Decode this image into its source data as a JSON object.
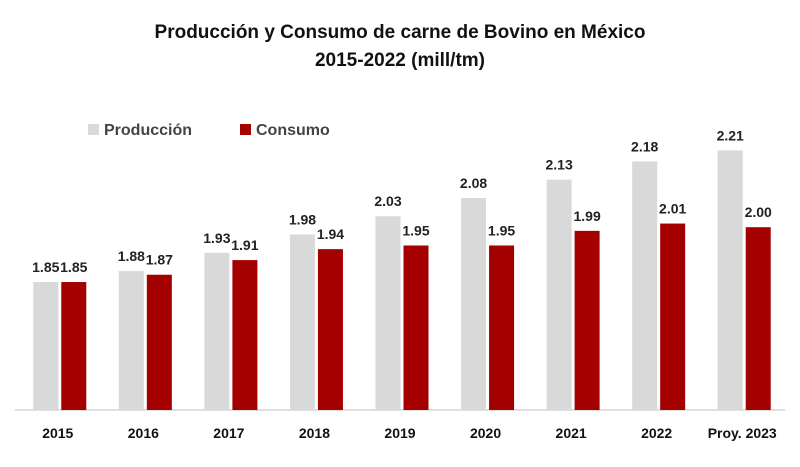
{
  "chart_data": {
    "type": "bar",
    "title": "Producción y Consumo de carne de Bovino en México",
    "subtitle": "2015-2022  (mill/tm)",
    "categories": [
      "2015",
      "2016",
      "2017",
      "2018",
      "2019",
      "2020",
      "2021",
      "2022",
      "Proy. 2023"
    ],
    "series": [
      {
        "name": "Producción",
        "color": "#d9d9d9",
        "values": [
          1.85,
          1.88,
          1.93,
          1.98,
          2.03,
          2.08,
          2.13,
          2.18,
          2.21
        ]
      },
      {
        "name": "Consumo",
        "color": "#a50000",
        "values": [
          1.85,
          1.87,
          1.91,
          1.94,
          1.95,
          1.95,
          1.99,
          2.01,
          2.0
        ]
      }
    ],
    "ylim": [
      1.5,
      2.3
    ],
    "legend_position": "top-left",
    "grid": false
  }
}
